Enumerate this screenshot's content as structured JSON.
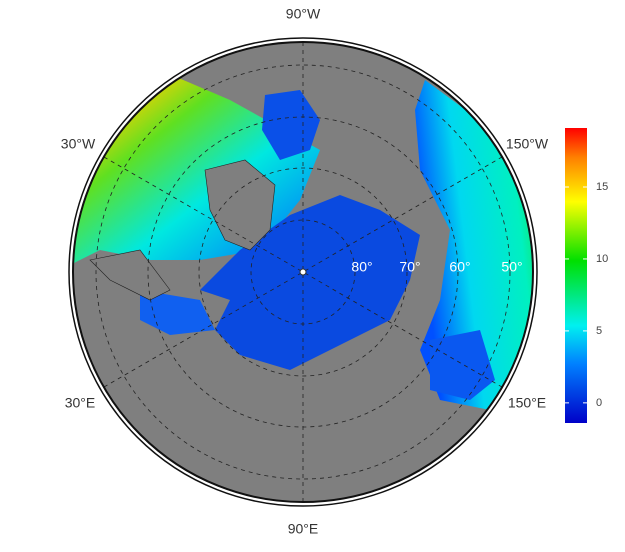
{
  "map": {
    "meridian_labels": [
      "90°W",
      "30°W",
      "150°W",
      "30°E",
      "150°E",
      "90°E"
    ],
    "parallel_labels": [
      "80°",
      "70°",
      "60°",
      "50°"
    ]
  },
  "colorbar": {
    "lim": [
      -1.4,
      19.1
    ],
    "ticks": [
      0,
      5,
      10,
      15
    ]
  }
}
